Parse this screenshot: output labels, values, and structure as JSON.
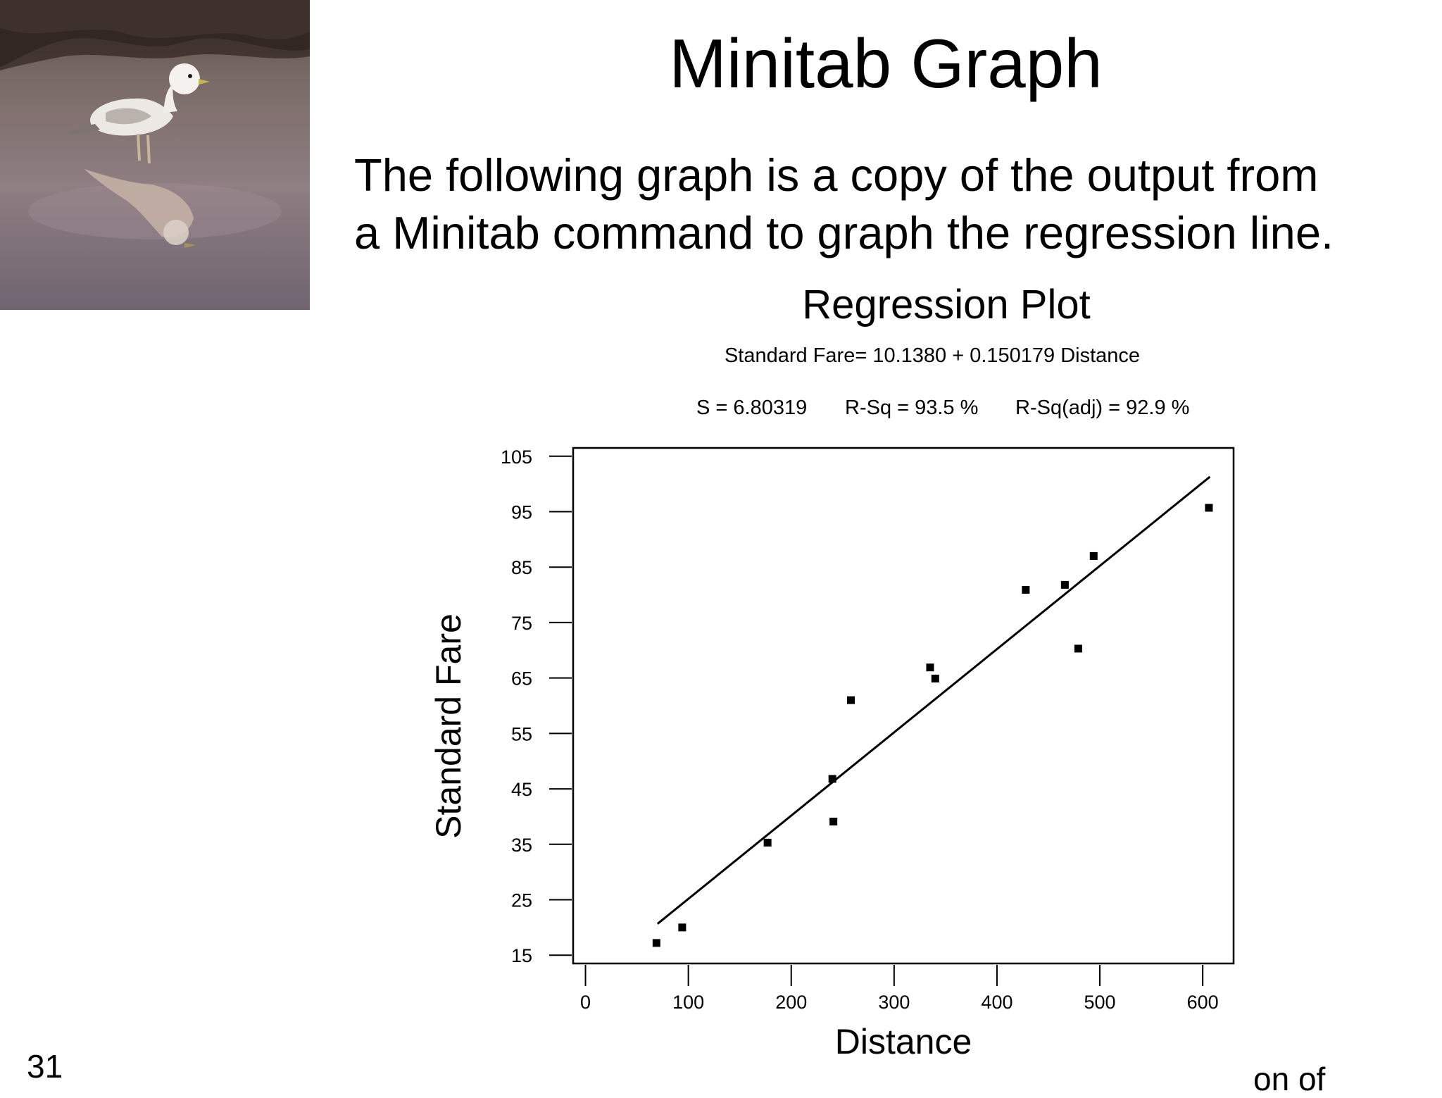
{
  "slide": {
    "title": "Minitab Graph",
    "body_lines": [
      "The following graph is a copy of the output from",
      "a Minitab command to graph the regression line."
    ],
    "slide_number": "31",
    "footer_fragment": "on of"
  },
  "chart_data": {
    "type": "scatter",
    "title": "Regression Plot",
    "subtitle": "Standard Fare= 10.1380 + 0.150179 Distance",
    "stats": [
      "S = 6.80319",
      "R-Sq = 93.5 %",
      "R-Sq(adj) = 92.9 %"
    ],
    "xlabel": "Distance",
    "ylabel": "Standard Fare",
    "xlim": [
      -12,
      630
    ],
    "ylim": [
      13.5,
      106.5
    ],
    "xticks": [
      0,
      100,
      200,
      300,
      400,
      500,
      600
    ],
    "yticks": [
      15,
      25,
      35,
      45,
      55,
      65,
      75,
      85,
      95,
      105
    ],
    "grid": false,
    "regression": {
      "intercept": 10.138,
      "slope": 0.150179,
      "x_range": [
        70,
        607
      ]
    },
    "points": [
      {
        "x": 69,
        "y": 17.2
      },
      {
        "x": 94,
        "y": 20.0
      },
      {
        "x": 177,
        "y": 35.3
      },
      {
        "x": 240,
        "y": 46.8
      },
      {
        "x": 241,
        "y": 39.1
      },
      {
        "x": 258,
        "y": 61.0
      },
      {
        "x": 335,
        "y": 66.9
      },
      {
        "x": 340,
        "y": 64.9
      },
      {
        "x": 428,
        "y": 80.9
      },
      {
        "x": 466,
        "y": 81.8
      },
      {
        "x": 479,
        "y": 70.3
      },
      {
        "x": 494,
        "y": 87.0
      },
      {
        "x": 606,
        "y": 95.7
      }
    ],
    "colors": {
      "marks": "#000000",
      "background": "#ffffff"
    }
  }
}
